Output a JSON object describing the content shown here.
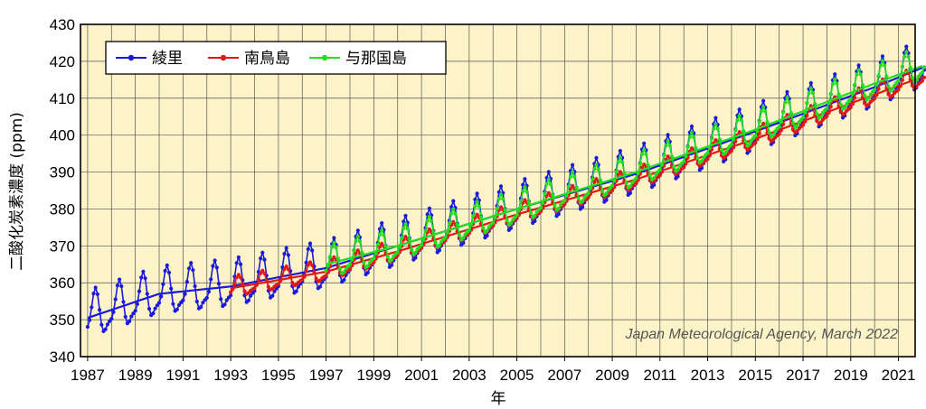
{
  "chart_data": {
    "type": "line",
    "title": "",
    "xlabel": "年",
    "ylabel": "二酸化炭素濃度 (ppm)",
    "xlim": [
      1986.7,
      2021.7
    ],
    "ylim": [
      340,
      430
    ],
    "y_ticks": [
      340,
      350,
      360,
      370,
      380,
      390,
      400,
      410,
      420,
      430
    ],
    "x_ticks": [
      {
        "value": 1987,
        "label": "1987"
      },
      {
        "value": 1989,
        "label": "1989"
      },
      {
        "value": 1991,
        "label": "1991"
      },
      {
        "value": 1993,
        "label": "1993"
      },
      {
        "value": 1995,
        "label": "1995"
      },
      {
        "value": 1997,
        "label": "1997"
      },
      {
        "value": 1999,
        "label": "1999"
      },
      {
        "value": 2001,
        "label": "2001"
      },
      {
        "value": 2003,
        "label": "2003"
      },
      {
        "value": 2005,
        "label": "2005"
      },
      {
        "value": 2007,
        "label": "2007"
      },
      {
        "value": 2009,
        "label": "2009"
      },
      {
        "value": 2011,
        "label": "2011"
      },
      {
        "value": 2013,
        "label": "2013"
      },
      {
        "value": 2015,
        "label": "2015"
      },
      {
        "value": 2017,
        "label": "2017"
      },
      {
        "value": 2019,
        "label": "2019"
      },
      {
        "value": 2021,
        "label": "2021"
      }
    ],
    "legend_position": "top-left",
    "annotation": "Japan Meteorological Agency, March 2022",
    "series": [
      {
        "name": "綾里",
        "color": "#1a1adb",
        "start": 1987.0,
        "end": 2022.1,
        "trend_anchors": [
          [
            1987.0,
            350.5
          ],
          [
            1990.0,
            357
          ],
          [
            1993.0,
            359
          ],
          [
            1997.0,
            364
          ],
          [
            2000.0,
            370
          ],
          [
            2005.0,
            380
          ],
          [
            2010.0,
            389.5
          ],
          [
            2015.0,
            401
          ],
          [
            2020.0,
            413
          ],
          [
            2022.1,
            418.5
          ]
        ],
        "amplitude": 6.8
      },
      {
        "name": "南鳥島",
        "color": "#e01818",
        "start": 1993.0,
        "end": 2022.1,
        "trend_anchors": [
          [
            1993.0,
            358.5
          ],
          [
            1997.0,
            363
          ],
          [
            2000.0,
            368.5
          ],
          [
            2005.0,
            378.5
          ],
          [
            2010.0,
            388
          ],
          [
            2015.0,
            399
          ],
          [
            2020.0,
            411
          ],
          [
            2022.1,
            416
          ]
        ],
        "amplitude": 3.0
      },
      {
        "name": "与那国島",
        "color": "#22dd22",
        "start": 1997.0,
        "end": 2022.1,
        "trend_anchors": [
          [
            1997.0,
            365
          ],
          [
            2000.0,
            370
          ],
          [
            2005.0,
            380
          ],
          [
            2010.0,
            390
          ],
          [
            2015.0,
            401.5
          ],
          [
            2020.0,
            414
          ],
          [
            2022.1,
            419
          ]
        ],
        "amplitude": 4.8
      }
    ]
  }
}
